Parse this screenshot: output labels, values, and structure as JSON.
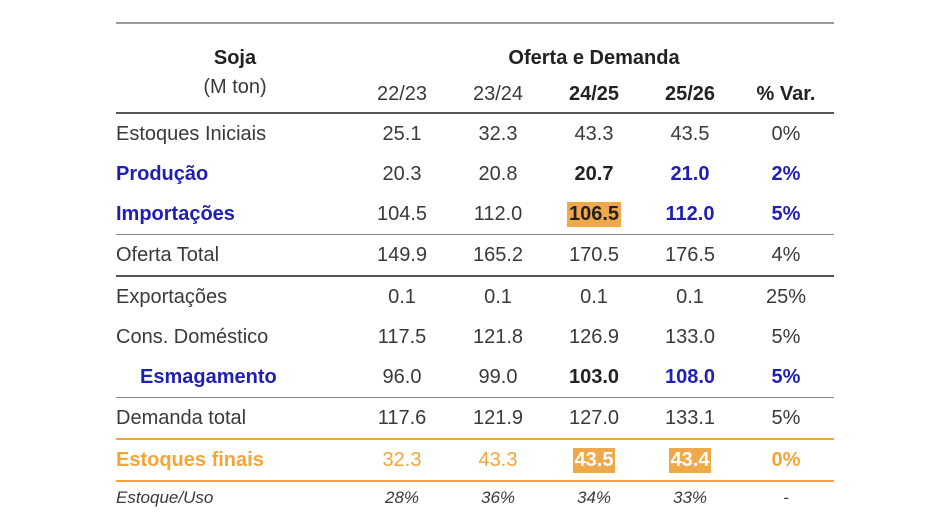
{
  "header": {
    "title": "Soja",
    "unit": "(M ton)",
    "group": "Oferta e Demanda",
    "columns": [
      "22/23",
      "23/24",
      "24/25",
      "25/26",
      "% Var."
    ]
  },
  "rows": [
    {
      "label": "Estoques Iniciais",
      "values": [
        "25.1",
        "32.3",
        "43.3",
        "43.5",
        "0%"
      ]
    },
    {
      "label": "Produção",
      "values": [
        "20.3",
        "20.8",
        "20.7",
        "21.0",
        "2%"
      ]
    },
    {
      "label": "Importações",
      "values": [
        "104.5",
        "112.0",
        "106.5",
        "112.0",
        "5%"
      ]
    },
    {
      "label": "Oferta Total",
      "values": [
        "149.9",
        "165.2",
        "170.5",
        "176.5",
        "4%"
      ]
    },
    {
      "label": "Exportações",
      "values": [
        "0.1",
        "0.1",
        "0.1",
        "0.1",
        "25%"
      ]
    },
    {
      "label": "Cons. Doméstico",
      "values": [
        "117.5",
        "121.8",
        "126.9",
        "133.0",
        "5%"
      ]
    },
    {
      "label": "Esmagamento",
      "values": [
        "96.0",
        "99.0",
        "103.0",
        "108.0",
        "5%"
      ]
    },
    {
      "label": "Demanda total",
      "values": [
        "117.6",
        "121.9",
        "127.0",
        "133.1",
        "5%"
      ]
    },
    {
      "label": "Estoques finais",
      "values": [
        "32.3",
        "43.3",
        "43.5",
        "43.4",
        "0%"
      ]
    },
    {
      "label": "Estoque/Uso",
      "values": [
        "28%",
        "36%",
        "34%",
        "33%",
        "-"
      ]
    }
  ],
  "colors": {
    "highlight_blue": "#1f1fb8",
    "highlight_orange": "#f4a53a",
    "cell_highlight": "#f0a94a"
  }
}
